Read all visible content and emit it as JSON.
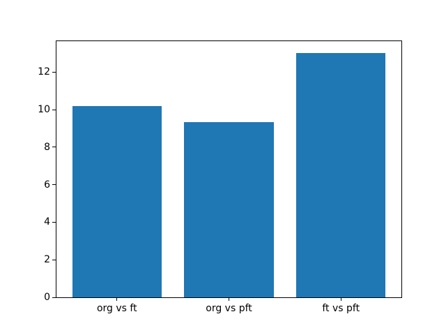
{
  "chart_data": {
    "type": "bar",
    "categories": [
      "org vs ft",
      "org vs pft",
      "ft vs pft"
    ],
    "values": [
      10.2,
      9.35,
      13.0
    ],
    "yticks": [
      0,
      2,
      4,
      6,
      8,
      10,
      12
    ],
    "ylim": [
      0,
      13.65
    ],
    "xlim": [
      -0.54,
      2.54
    ],
    "bar_width": 0.8,
    "bar_color": "#1f77b4",
    "axes_edge_color": "#000000",
    "background_color": "#ffffff",
    "grid": false,
    "legend": false
  }
}
